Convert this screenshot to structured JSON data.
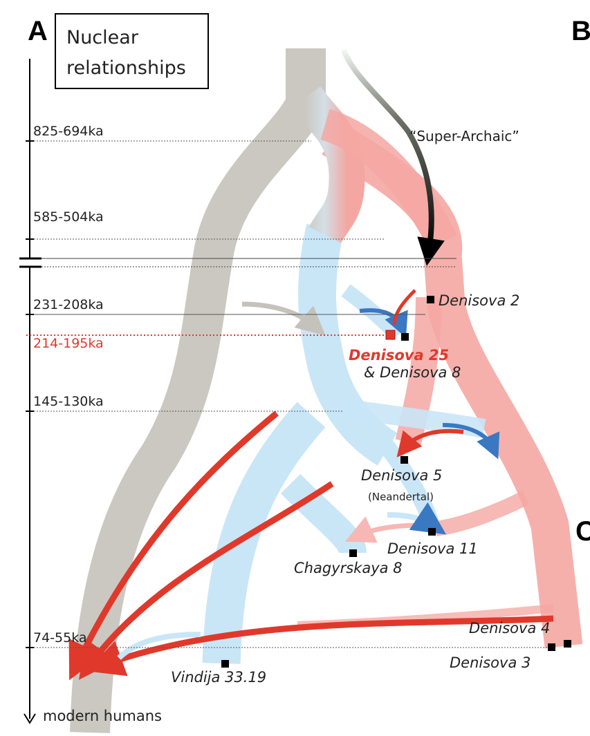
{
  "panel_labels": {
    "a": "A",
    "b": "B",
    "c": "C"
  },
  "title": "Nuclear relationships",
  "title_lines": [
    "Nuclear",
    "relationships"
  ],
  "time_axis": {
    "ticks": [
      "825-694ka",
      "585-504ka",
      "231-208ka",
      "214-195ka",
      "145-130ka",
      "74-55ka"
    ],
    "highlight_tick": "214-195ka",
    "bottom_label": "modern humans"
  },
  "lineage_colors": {
    "modern_humans": "#cbc8c2",
    "neandertals": "#c9e6f7",
    "denisovans": "#f4a7a2",
    "super_archaic": "#000000"
  },
  "arrow_colors": {
    "red": "#e0392b",
    "blue": "#3a78c2",
    "grey": "#c5c2bc",
    "pink": "#f5b8b4"
  },
  "annotations": {
    "super_archaic": "“Super-Archaic”",
    "neandertal_note": "(Neandertal)"
  },
  "specimens": {
    "denisova_2": "Denisova 2",
    "denisova_25": "Denisova 25",
    "denisova_8": "& Denisova 8",
    "denisova_5": "Denisova 5",
    "denisova_11": "Denisova 11",
    "chagyrskaya_8": "Chagyrskaya 8",
    "denisova_4": "Denisova 4",
    "denisova_3": "Denisova 3",
    "vindija": "Vindija 33.19"
  }
}
